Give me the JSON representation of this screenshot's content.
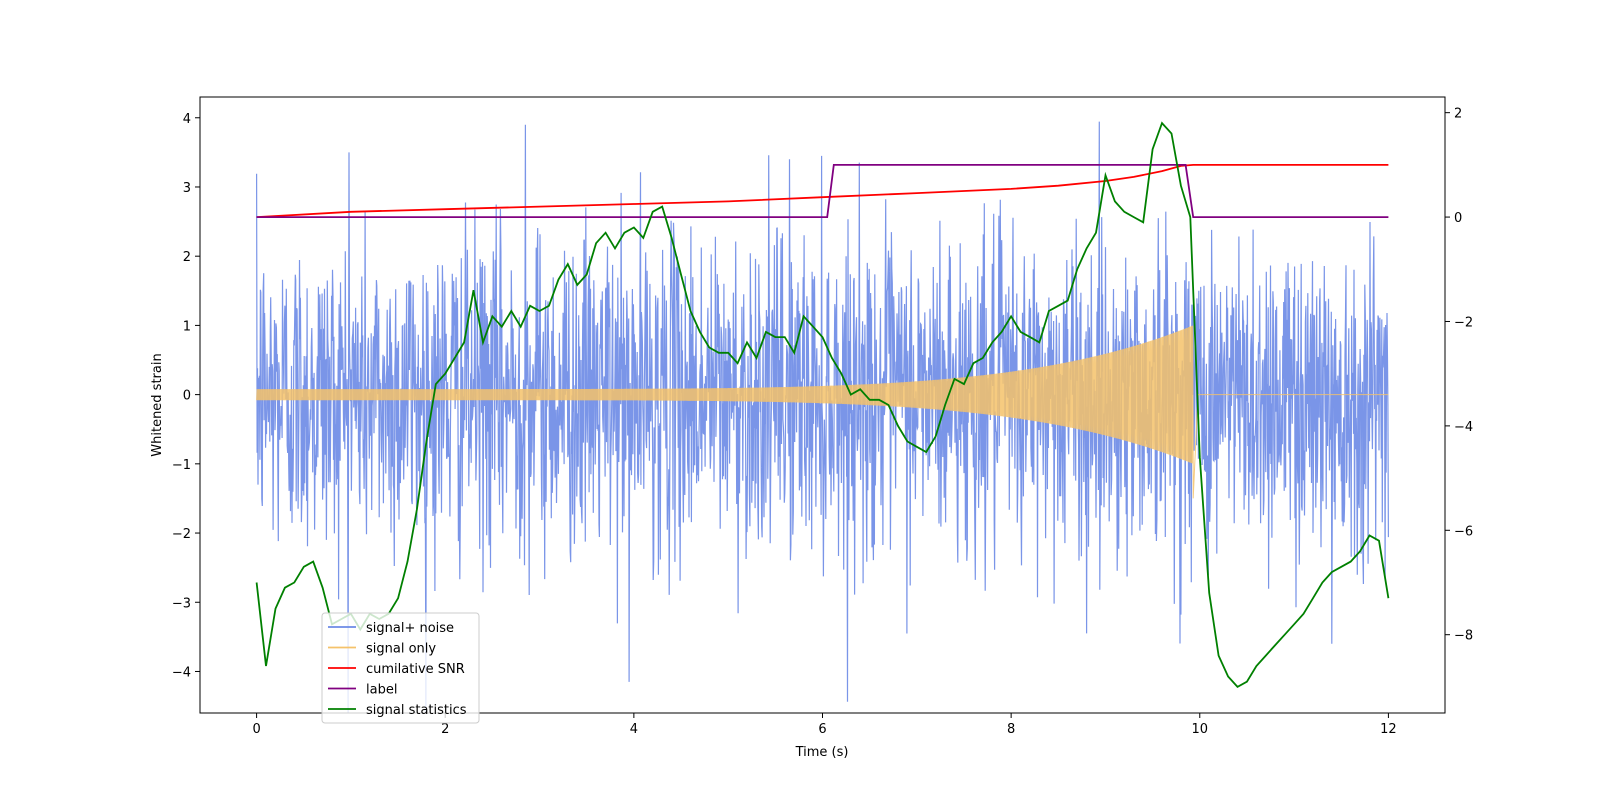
{
  "chart_data": {
    "type": "line",
    "title": "",
    "xlabel": "Time (s)",
    "ylabel": "Whitened strain",
    "y2label": "",
    "xlim": [
      -0.6,
      12.6
    ],
    "ylim": [
      -4.6,
      4.3
    ],
    "y2lim": [
      -9.5,
      2.3
    ],
    "xticks": [
      0,
      2,
      4,
      6,
      8,
      10,
      12
    ],
    "yticks": [
      -4,
      -3,
      -2,
      -1,
      0,
      1,
      2,
      3,
      4
    ],
    "y2ticks": [
      -8,
      -6,
      -4,
      -2,
      0,
      2
    ],
    "grid": false,
    "legend_position": "lower-left",
    "series": [
      {
        "name": "signal+ noise",
        "axis": "left",
        "color": "#6b8ae6",
        "kind": "noise",
        "duration": 12,
        "end_index_time": 12.0,
        "noise_sd": 1.0,
        "peak_points": [
          [
            2.85,
            3.9
          ],
          [
            3.95,
            -4.15
          ],
          [
            0.98,
            3.5
          ],
          [
            5.65,
            3.4
          ],
          [
            8.8,
            -3.45
          ],
          [
            11.4,
            -3.6
          ]
        ]
      },
      {
        "name": "signal only",
        "axis": "left",
        "color": "#f5c26a",
        "kind": "chirp",
        "start": 0,
        "merger": 9.93,
        "end": 12,
        "amp_start": 0.08,
        "amp_merger": 1.0,
        "min_at_merger": -1.5
      },
      {
        "name": "cumilative SNR",
        "axis": "right",
        "color": "#ff0000",
        "x": [
          0,
          1,
          2,
          3,
          4,
          5,
          6,
          7,
          8,
          8.5,
          9,
          9.3,
          9.6,
          9.8,
          9.93,
          10,
          11,
          12
        ],
        "y": [
          0,
          0.1,
          0.15,
          0.2,
          0.25,
          0.3,
          0.38,
          0.46,
          0.54,
          0.6,
          0.69,
          0.77,
          0.88,
          0.98,
          1.0,
          1.0,
          1.0,
          1.0
        ]
      },
      {
        "name": "label",
        "axis": "right",
        "color": "#800080",
        "x": [
          0,
          6.05,
          6.12,
          9.85,
          9.93,
          12
        ],
        "y": [
          0,
          0,
          1,
          1,
          0,
          0
        ]
      },
      {
        "name": "signal statistics",
        "axis": "right",
        "color": "#008000",
        "x": [
          0,
          0.1,
          0.2,
          0.3,
          0.4,
          0.5,
          0.6,
          0.7,
          0.8,
          0.9,
          1.0,
          1.1,
          1.2,
          1.3,
          1.4,
          1.5,
          1.6,
          1.7,
          1.8,
          1.9,
          2.0,
          2.1,
          2.2,
          2.3,
          2.4,
          2.5,
          2.6,
          2.7,
          2.8,
          2.9,
          3.0,
          3.1,
          3.2,
          3.3,
          3.4,
          3.5,
          3.6,
          3.7,
          3.8,
          3.9,
          4.0,
          4.1,
          4.2,
          4.3,
          4.4,
          4.5,
          4.6,
          4.7,
          4.8,
          4.9,
          5.0,
          5.1,
          5.2,
          5.3,
          5.4,
          5.5,
          5.6,
          5.7,
          5.8,
          5.9,
          6.0,
          6.1,
          6.2,
          6.3,
          6.4,
          6.5,
          6.6,
          6.7,
          6.8,
          6.9,
          7.0,
          7.1,
          7.2,
          7.3,
          7.4,
          7.5,
          7.6,
          7.7,
          7.8,
          7.9,
          8.0,
          8.1,
          8.2,
          8.3,
          8.4,
          8.5,
          8.6,
          8.7,
          8.8,
          8.9,
          9.0,
          9.1,
          9.2,
          9.3,
          9.4,
          9.5,
          9.6,
          9.7,
          9.8,
          9.9,
          10.0,
          10.1,
          10.2,
          10.3,
          10.4,
          10.5,
          10.6,
          10.7,
          10.8,
          10.9,
          11.0,
          11.1,
          11.2,
          11.3,
          11.4,
          11.5,
          11.6,
          11.7,
          11.8,
          11.9,
          12.0
        ],
        "y": [
          -7.0,
          -8.6,
          -7.5,
          -7.1,
          -7.0,
          -6.7,
          -6.6,
          -7.1,
          -7.8,
          -7.7,
          -7.6,
          -7.9,
          -7.6,
          -7.7,
          -7.6,
          -7.3,
          -6.6,
          -5.6,
          -4.3,
          -3.2,
          -3.0,
          -2.7,
          -2.4,
          -1.4,
          -2.4,
          -1.9,
          -2.1,
          -1.8,
          -2.1,
          -1.7,
          -1.8,
          -1.7,
          -1.2,
          -0.9,
          -1.3,
          -1.1,
          -0.5,
          -0.3,
          -0.6,
          -0.3,
          -0.2,
          -0.4,
          0.1,
          0.2,
          -0.4,
          -1.1,
          -1.8,
          -2.2,
          -2.5,
          -2.6,
          -2.6,
          -2.8,
          -2.4,
          -2.7,
          -2.2,
          -2.3,
          -2.3,
          -2.6,
          -1.9,
          -2.1,
          -2.3,
          -2.7,
          -3.0,
          -3.4,
          -3.3,
          -3.5,
          -3.5,
          -3.6,
          -4.0,
          -4.3,
          -4.4,
          -4.5,
          -4.2,
          -3.6,
          -3.1,
          -3.2,
          -2.8,
          -2.7,
          -2.4,
          -2.2,
          -1.9,
          -2.2,
          -2.3,
          -2.4,
          -1.8,
          -1.7,
          -1.6,
          -1.0,
          -0.6,
          -0.3,
          0.8,
          0.3,
          0.1,
          0.0,
          -0.1,
          1.3,
          1.8,
          1.6,
          0.6,
          0.0,
          -4.6,
          -7.2,
          -8.4,
          -8.8,
          -9.0,
          -8.9,
          -8.6,
          -8.4,
          -8.2,
          -8.0,
          -7.8,
          -7.6,
          -7.3,
          -7.0,
          -6.8,
          -6.7,
          -6.6,
          -6.4,
          -6.1,
          -6.2,
          -7.3
        ]
      }
    ]
  }
}
